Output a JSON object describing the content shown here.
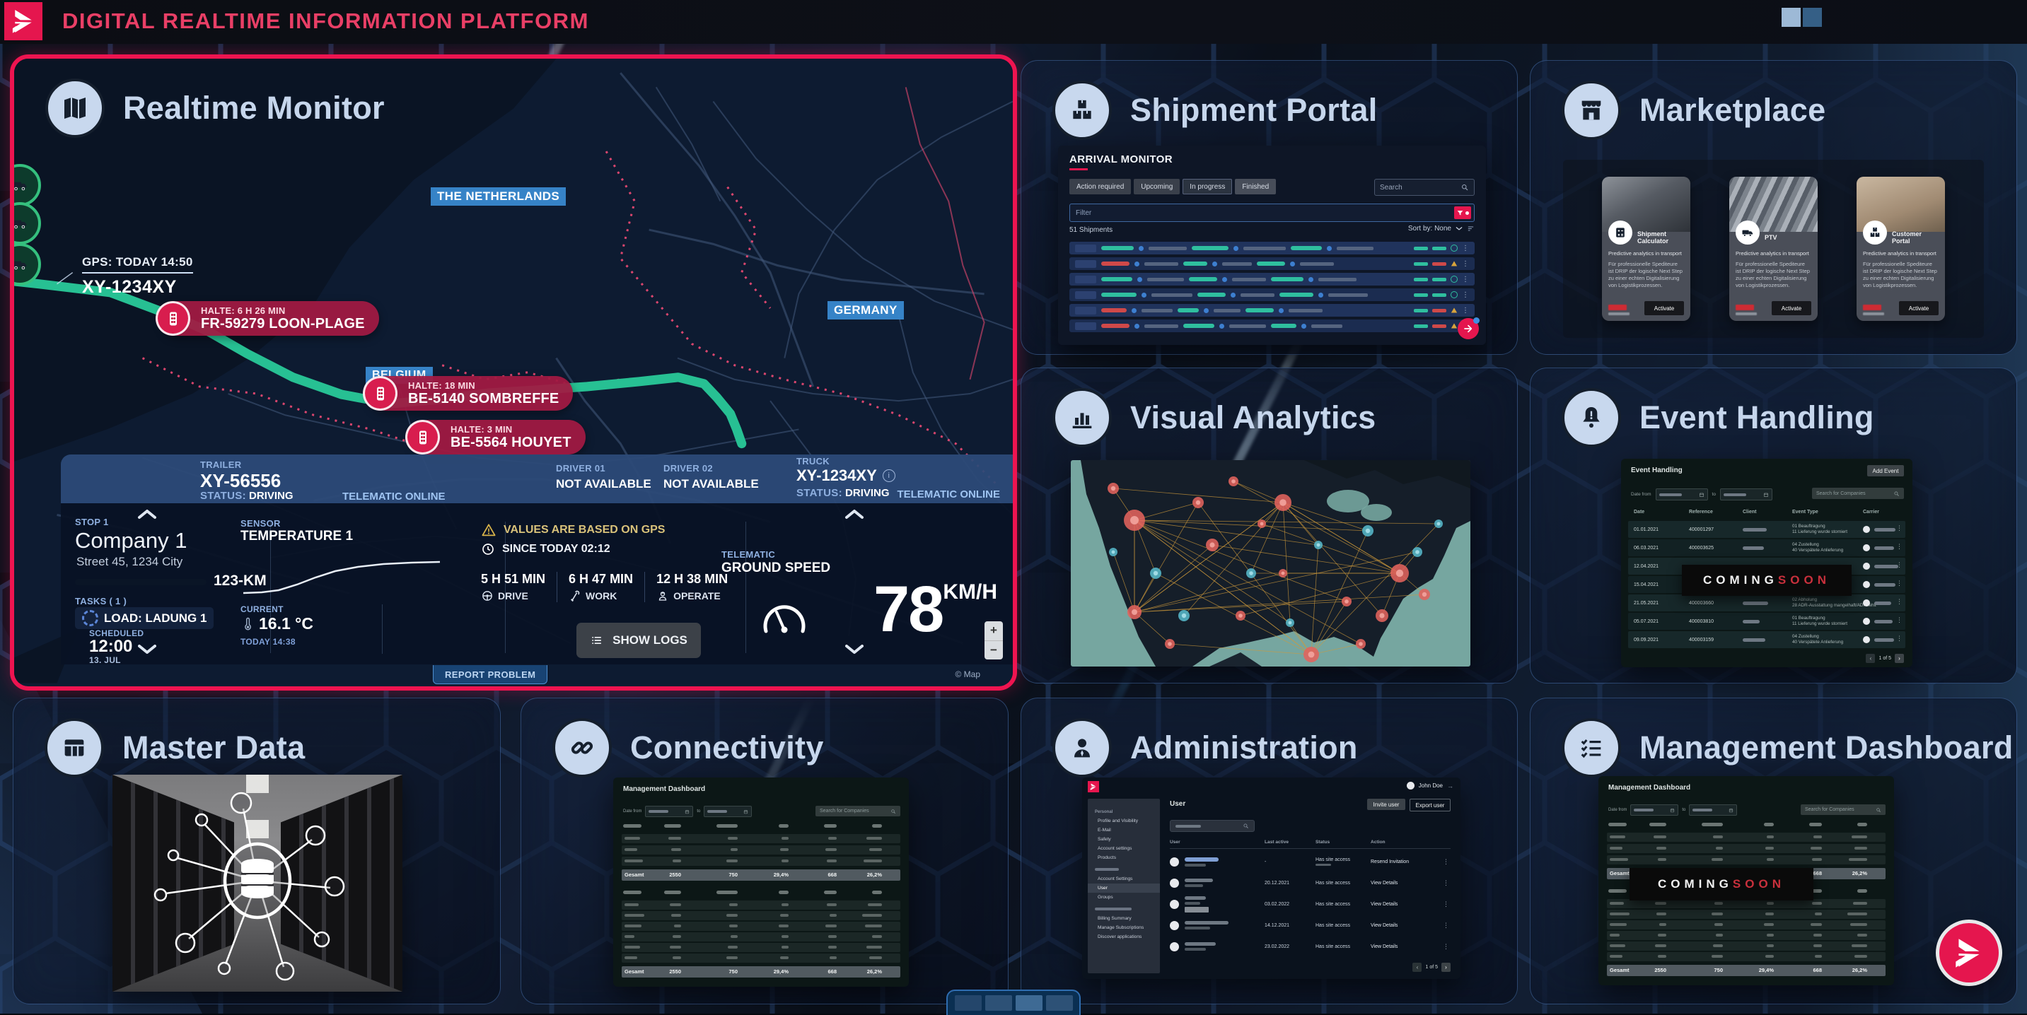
{
  "header": {
    "title": "DIGITAL REALTIME INFORMATION PLATFORM"
  },
  "realtime_monitor": {
    "title": "Realtime Monitor",
    "map": {
      "labels": {
        "netherlands": "THE NETHERLANDS",
        "belgium": "BELGIUM",
        "germany": "GERMANY"
      },
      "attribution": "© Map"
    },
    "gps": {
      "label": "GPS: TODAY 14:50",
      "vehicle_id": "XY-1234XY"
    },
    "stops": [
      {
        "halt": "HALTE: 6 H 26 MIN",
        "location": "FR-59279 LOON-PLAGE"
      },
      {
        "halt": "HALTE: 18 MIN",
        "location": "BE-5140 SOMBREFFE"
      },
      {
        "halt": "HALTE: 3 MIN",
        "location": "BE-5564 HOUYET"
      }
    ],
    "info_bar": {
      "trailer_label": "TRAILER",
      "trailer_id": "XY-56556",
      "status_label": "STATUS:",
      "trailer_status": "DRIVING",
      "trailer_telematic": "TELEMATIC ONLINE",
      "driver1_label": "DRIVER 01",
      "driver1_value": "NOT AVAILABLE",
      "driver2_label": "DRIVER 02",
      "driver2_value": "NOT AVAILABLE",
      "truck_label": "TRUCK",
      "truck_id": "XY-1234XY",
      "truck_status": "DRIVING",
      "truck_telematic": "TELEMATIC ONLINE"
    },
    "stop_panel": {
      "label": "STOP 1",
      "company": "Company 1",
      "address": "Street 45, 1234 City",
      "distance": "123-KM",
      "tasks_label": "TASKS ( 1 )",
      "task": "LOAD: LADUNG 1",
      "scheduled_label": "SCHEDULED",
      "scheduled_time": "12:00",
      "scheduled_date": "13. JUL"
    },
    "sensor_panel": {
      "label": "SENSOR",
      "name": "TEMPERATURE 1",
      "current_label": "CURRENT",
      "current_value": "16.1 °C",
      "current_time": "TODAY 14:38"
    },
    "times_panel": {
      "warning": "VALUES ARE BASED ON GPS",
      "since": "SINCE TODAY 02:12",
      "drive_time": "5 H 51 MIN",
      "drive_label": "DRIVE",
      "work_time": "6 H 47 MIN",
      "work_label": "WORK",
      "operate_time": "12 H 38 MIN",
      "operate_label": "OPERATE",
      "show_logs": "SHOW LOGS"
    },
    "telematic_panel": {
      "label": "TELEMATIC",
      "name": "GROUND SPEED",
      "speed": "78",
      "unit": "KM/H"
    },
    "report_problem": "REPORT PROBLEM"
  },
  "shipment_portal": {
    "title": "Shipment Portal",
    "monitor_title": "ARRIVAL MONITOR",
    "tabs": [
      "Action required",
      "Upcoming",
      "In progress",
      "Finished"
    ],
    "active_tab": "In progress",
    "search_placeholder": "Search",
    "filter_placeholder": "Filter",
    "count_text": "51 Shipments",
    "sort_text": "Sort by: None",
    "row_count": 6
  },
  "marketplace": {
    "title": "Marketplace",
    "cards": [
      {
        "name": "Shipment Calculator",
        "subtitle": "Predictive analytics in transport",
        "description": "Für professionelle Spediteure ist DRIP der logische Next Step zu einer echten Digitalisierung von Logistikprozessen.",
        "button": "Activate"
      },
      {
        "name": "PTV",
        "subtitle": "Predictive analytics in transport",
        "description": "Für professionelle Spediteure ist DRIP der logische Next Step zu einer echten Digitalisierung von Logistikprozessen.",
        "button": "Activate"
      },
      {
        "name": "Customer Portal",
        "subtitle": "Predictive analytics in transport",
        "description": "Für professionelle Spediteure ist DRIP der logische Next Step zu einer echten Digitalisierung von Logistikprozessen.",
        "button": "Activate"
      }
    ]
  },
  "visual_analytics": {
    "title": "Visual Analytics"
  },
  "event_handling": {
    "title": "Event Handling",
    "app_title": "Event Handling",
    "add_button": "Add Event",
    "date_from_label": "Date from",
    "to_label": "to",
    "search_placeholder": "Search for Companies",
    "columns": [
      "Date",
      "Reference",
      "Client",
      "Event Type",
      "Carrier"
    ],
    "rows": [
      {
        "date": "01.01.2021",
        "reference": "400001297",
        "event": "01 Beauftragung",
        "event2": "11 Lieferung wurde storniert"
      },
      {
        "date": "06.03.2021",
        "reference": "400003625",
        "event": "04 Zustellung",
        "event2": "40 Verspätete Anlieferung"
      },
      {
        "date": "12.04.2021",
        "reference": "",
        "event": "",
        "event2": ""
      },
      {
        "date": "15.04.2021",
        "reference": "400003673",
        "event": "",
        "event2": "31 Verspätung der Fähre"
      },
      {
        "date": "21.05.2021",
        "reference": "400003660",
        "event": "02 Abholung",
        "event2": "28 ADR-Ausstattung mangelhaft/ADR fehlt"
      },
      {
        "date": "05.07.2021",
        "reference": "400003810",
        "event": "01 Beauftragung",
        "event2": "11 Lieferung wurde storniert"
      },
      {
        "date": "09.09.2021",
        "reference": "400003159",
        "event": "04 Zustellung",
        "event2": "40 Verspätete Anlieferung"
      }
    ],
    "coming_soon": {
      "first": "COMING",
      "second": "SOON"
    },
    "pagination": "1 of 5"
  },
  "master_data": {
    "title": "Master Data"
  },
  "connectivity": {
    "title": "Connectivity",
    "app_title": "Management Dashboard",
    "date_from_label": "Date from",
    "to_label": "to",
    "search_placeholder": "Search for Companies",
    "total_label": "Gesamt",
    "totals": [
      "2550",
      "750",
      "29,4%",
      "668",
      "26,2%"
    ],
    "table1_row_count": 3,
    "table2_row_count": 6
  },
  "administration": {
    "title": "Administration",
    "user_name": "John Doe",
    "sidebar": {
      "section1": "Personal",
      "items1": [
        "Profile and Visibility",
        "E-Mail",
        "Safety",
        "Account settings",
        "Products"
      ],
      "items2": [
        "Account Settings",
        "User",
        "Groups"
      ],
      "items3": [
        "Billing Summary",
        "Manage Subscriptions",
        "Discover applications"
      ],
      "active_item": "User"
    },
    "page_title": "User",
    "invite_button": "Invite user",
    "export_button": "Export user",
    "columns": [
      "User",
      "Last active",
      "Status",
      "Action"
    ],
    "rows": [
      {
        "last_active": "-",
        "status": "Has site access",
        "action": "Resend Invitation"
      },
      {
        "last_active": "20.12.2021",
        "status": "Has site access",
        "action": "View Details"
      },
      {
        "last_active": "03.02.2022",
        "status": "Has site access",
        "action": "View Details"
      },
      {
        "last_active": "14.12.2021",
        "status": "Has site access",
        "action": "View Details"
      },
      {
        "last_active": "23.02.2022",
        "status": "Has site access",
        "action": "View Details"
      }
    ],
    "pagination": "1 of 5"
  },
  "management_dashboard": {
    "title": "Management Dashboard",
    "app_title": "Management Dashboard",
    "coming_soon": {
      "first": "COMING",
      "second": "SOON"
    },
    "total_label": "Gesamt",
    "totals": [
      "2550",
      "750",
      "29,4%",
      "668",
      "26,2%"
    ]
  },
  "colors": {
    "accent": "#e5164e",
    "tile_title": "#c6d6ec",
    "badge_blue": "#3a8cd4",
    "route_green": "#27c093",
    "warning_yellow": "#d9b44a",
    "coming_soon_red": "#c9303c",
    "teal": "#2fbf9f"
  }
}
